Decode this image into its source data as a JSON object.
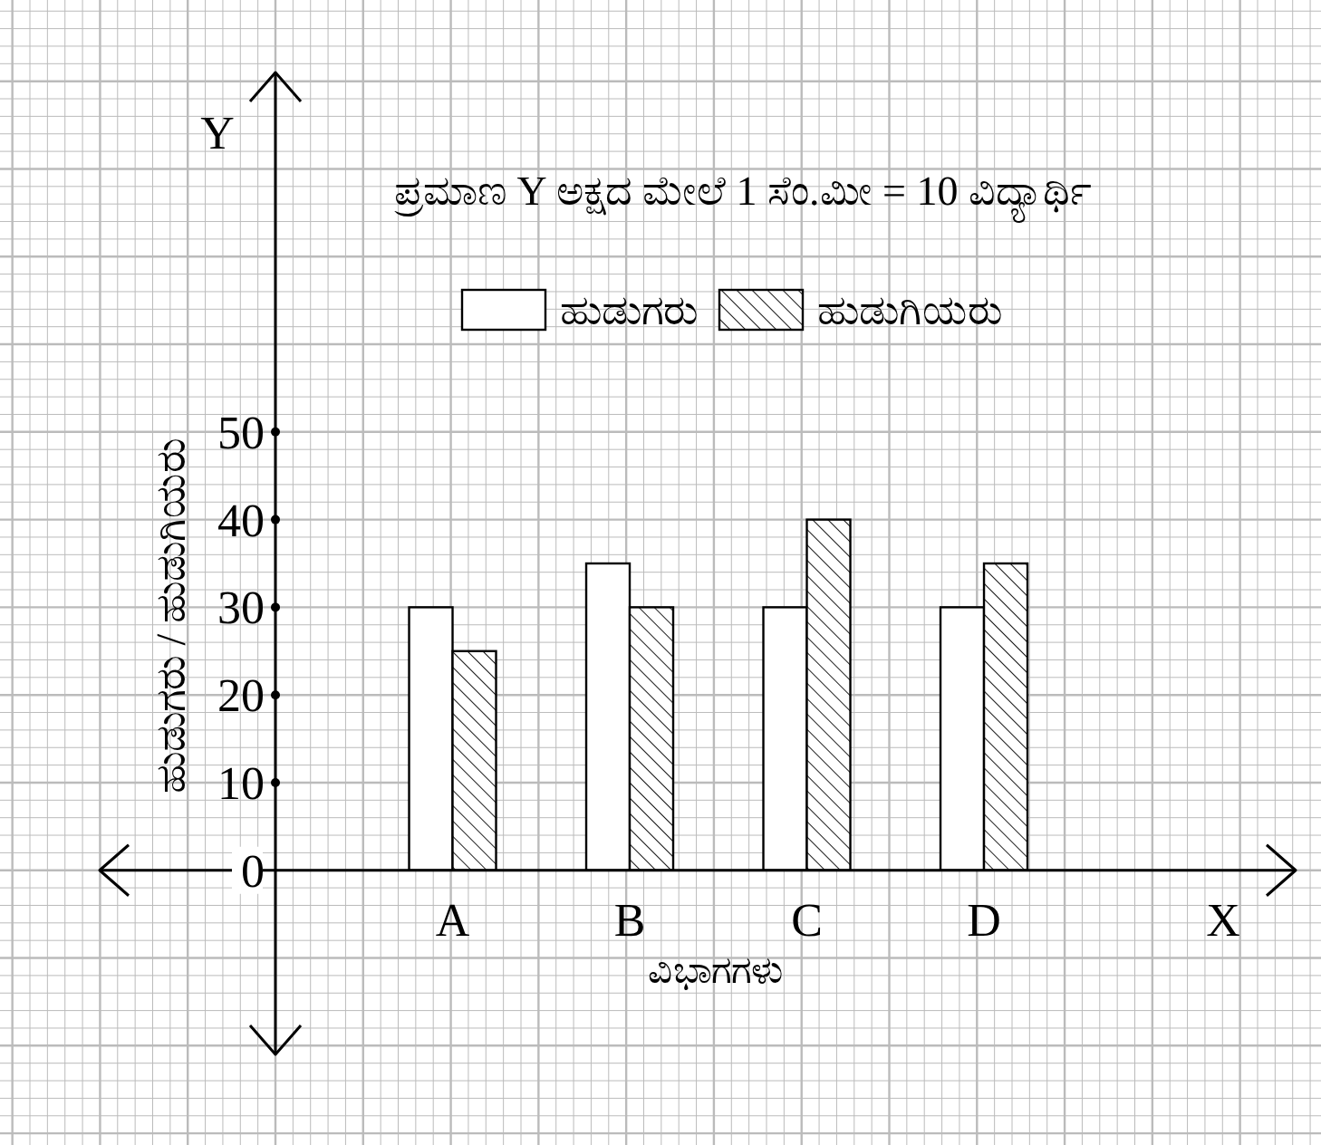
{
  "chart_data": {
    "type": "bar",
    "title": "ಪ್ರಮಾಣ Y ಅಕ್ಷದ ಮೇಲೆ 1 ಸೆಂ.ಮೀ = 10 ವಿದ್ಯಾರ್ಥಿ",
    "xlabel": "ವಿಭಾಗಗಳು",
    "ylabel": "ಹುಡುಗರು / ಹುಡುಗಿಯರು",
    "annotations": [
      "Y",
      "X"
    ],
    "categories": [
      "A",
      "B",
      "C",
      "D"
    ],
    "series": [
      {
        "name": "ಹುಡುಗರು",
        "color": "#ffffff",
        "values": [
          30,
          35,
          30,
          30
        ]
      },
      {
        "name": "ಹುಡುಗಿಯರು",
        "color": "#000000",
        "values": [
          25,
          30,
          40,
          35
        ]
      }
    ],
    "ylim": [
      -21,
      91
    ],
    "yticks": [
      0,
      10,
      20,
      30,
      40,
      50
    ],
    "grid": true,
    "legend": "top"
  }
}
